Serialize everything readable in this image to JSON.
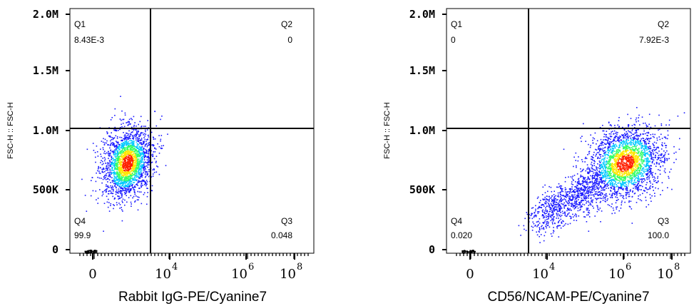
{
  "chart_data": [
    {
      "type": "scatter",
      "subtype": "flow-cytometry-density",
      "xlabel": "Rabbit IgG-PE/Cyanine7",
      "ylabel": "FSC-H :: FSC-H",
      "y_ticks": [
        "0",
        "500K",
        "1.0M",
        "1.5M",
        "2.0M"
      ],
      "x_ticks": [
        {
          "base": "0",
          "exp": ""
        },
        {
          "base": "10",
          "exp": "4"
        },
        {
          "base": "10",
          "exp": "6"
        },
        {
          "base": "10",
          "exp": "8"
        }
      ],
      "x_scale": "biexponential",
      "ylim": [
        0,
        2000000
      ],
      "gate": {
        "x": "10^3.2",
        "y": 1000000
      },
      "quadrants": [
        {
          "name": "Q1",
          "value": "8.43E-3"
        },
        {
          "name": "Q2",
          "value": "0"
        },
        {
          "name": "Q3",
          "value": "0.048"
        },
        {
          "name": "Q4",
          "value": "99.9"
        }
      ],
      "population": {
        "x_center": "approx 10^2",
        "y_center": 720000
      }
    },
    {
      "type": "scatter",
      "subtype": "flow-cytometry-density",
      "xlabel": "CD56/NCAM-PE/Cyanine7",
      "ylabel": "FSC-H :: FSC-H",
      "y_ticks": [
        "0",
        "500K",
        "1.0M",
        "1.5M",
        "2.0M"
      ],
      "x_ticks": [
        {
          "base": "0",
          "exp": ""
        },
        {
          "base": "10",
          "exp": "4"
        },
        {
          "base": "10",
          "exp": "6"
        },
        {
          "base": "10",
          "exp": "8"
        }
      ],
      "x_scale": "biexponential",
      "ylim": [
        0,
        2000000
      ],
      "gate": {
        "x": "10^3.2",
        "y": 1000000
      },
      "quadrants": [
        {
          "name": "Q1",
          "value": "0"
        },
        {
          "name": "Q2",
          "value": "7.92E-3"
        },
        {
          "name": "Q3",
          "value": "100.0"
        },
        {
          "name": "Q4",
          "value": "0.020"
        }
      ],
      "population": {
        "x_center": "approx 10^6.3",
        "y_center": 720000
      }
    }
  ],
  "colors": {
    "density_low": "#1a1aff",
    "density_mid": "#00c8ff",
    "density_midhigh": "#33ff66",
    "density_high": "#ffe600",
    "density_peak": "#ff2000",
    "axis": "#000000",
    "gate_line": "#000000"
  }
}
